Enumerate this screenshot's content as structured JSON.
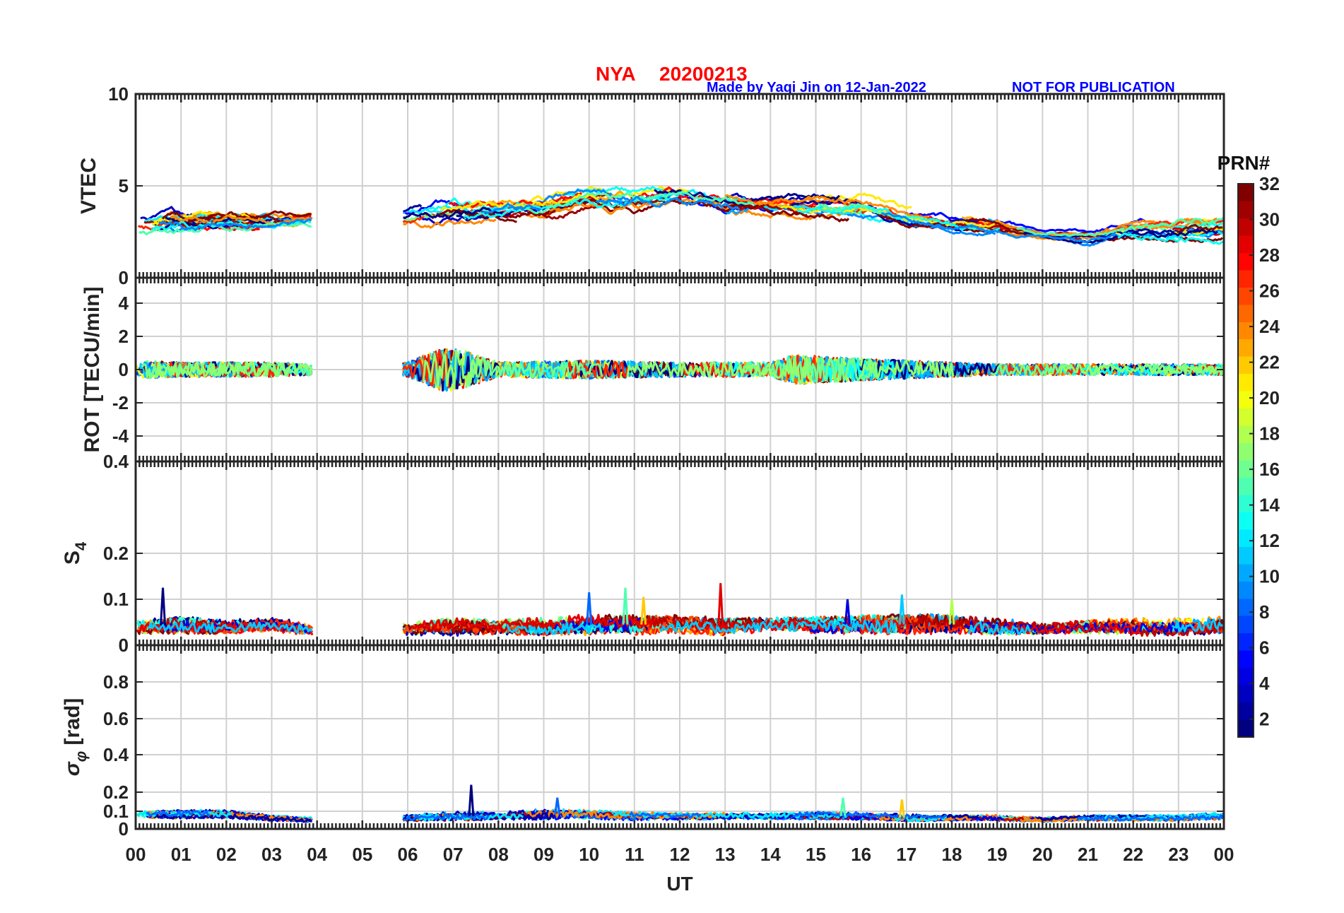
{
  "title": {
    "station": "NYA",
    "date": "20200213",
    "credit": "Made by Yaqi Jin on 12-Jan-2022",
    "notice": "NOT FOR PUBLICATION"
  },
  "chart_data": {
    "type": "line",
    "x_label": "UT",
    "x_ticks": [
      "00",
      "01",
      "02",
      "03",
      "04",
      "05",
      "06",
      "07",
      "08",
      "09",
      "10",
      "11",
      "12",
      "13",
      "14",
      "15",
      "16",
      "17",
      "18",
      "19",
      "20",
      "21",
      "22",
      "23",
      "00"
    ],
    "xlim": [
      0,
      24
    ],
    "data_gap_hours": [
      3.9,
      5.9
    ],
    "colorbar": {
      "title": "PRN#",
      "range": [
        1,
        32
      ],
      "ticks": [
        "2",
        "4",
        "6",
        "8",
        "10",
        "12",
        "14",
        "16",
        "18",
        "20",
        "22",
        "24",
        "26",
        "28",
        "30",
        "32"
      ],
      "colormap": "jet"
    },
    "panels": [
      {
        "id": "vtec",
        "ylabel": "VTEC",
        "ylim": [
          0,
          10
        ],
        "yticks": [
          "0",
          "5",
          "10"
        ],
        "envelope": {
          "hours": [
            0,
            1,
            2,
            3,
            3.9,
            6,
            7,
            8,
            9,
            10,
            11,
            12,
            13,
            14,
            15,
            16,
            17,
            18,
            19,
            20,
            21,
            22,
            23,
            24
          ],
          "mean": [
            2.9,
            3.0,
            3.1,
            3.1,
            3.2,
            3.3,
            3.6,
            3.7,
            3.9,
            4.4,
            4.3,
            4.5,
            4.2,
            4.0,
            4.0,
            3.9,
            3.3,
            3.0,
            2.8,
            2.3,
            2.2,
            2.6,
            2.6,
            2.7
          ],
          "spread": [
            0.9,
            0.9,
            0.8,
            0.7,
            0.6,
            0.8,
            1.0,
            0.8,
            0.9,
            0.9,
            1.0,
            1.0,
            0.9,
            0.7,
            0.8,
            0.9,
            0.7,
            0.6,
            0.6,
            0.3,
            0.5,
            0.7,
            0.8,
            0.8
          ]
        }
      },
      {
        "id": "rot",
        "ylabel": "ROT [TECU/min]",
        "ylim": [
          -5,
          5
        ],
        "yticks": [
          "-4",
          "-2",
          "0",
          "2",
          "4"
        ],
        "envelope": {
          "hours": [
            0,
            1,
            2,
            3,
            3.9,
            6,
            6.8,
            7.3,
            8,
            10,
            12,
            14,
            14.5,
            16,
            17,
            19,
            21,
            24
          ],
          "mean": [
            0,
            0,
            0,
            0,
            0,
            0,
            0,
            0,
            0,
            0,
            0,
            0,
            0,
            0,
            0,
            0,
            0,
            0
          ],
          "spread": [
            0.5,
            0.4,
            0.4,
            0.4,
            0.3,
            0.4,
            1.2,
            1.0,
            0.4,
            0.5,
            0.4,
            0.4,
            0.8,
            0.6,
            0.5,
            0.3,
            0.3,
            0.3
          ]
        }
      },
      {
        "id": "s4",
        "ylabel": "S",
        "ylabel_sub": "4",
        "ylim": [
          0,
          0.4
        ],
        "yticks": [
          "0",
          "0.1",
          "0.2",
          "0.4"
        ],
        "envelope": {
          "hours": [
            0,
            1,
            2,
            3,
            3.9,
            6,
            7,
            8,
            9,
            10,
            11,
            12,
            13,
            14,
            15,
            16,
            17,
            18,
            19,
            20,
            21,
            22,
            23,
            24
          ],
          "mean": [
            0.04,
            0.045,
            0.04,
            0.045,
            0.035,
            0.035,
            0.04,
            0.04,
            0.04,
            0.045,
            0.045,
            0.045,
            0.04,
            0.045,
            0.045,
            0.045,
            0.045,
            0.045,
            0.04,
            0.035,
            0.04,
            0.04,
            0.04,
            0.045
          ],
          "spread": [
            0.025,
            0.03,
            0.025,
            0.025,
            0.02,
            0.02,
            0.03,
            0.025,
            0.03,
            0.035,
            0.035,
            0.03,
            0.03,
            0.025,
            0.03,
            0.035,
            0.035,
            0.035,
            0.03,
            0.02,
            0.025,
            0.03,
            0.03,
            0.03
          ]
        },
        "spikes": [
          [
            0.6,
            0.125
          ],
          [
            10,
            0.115
          ],
          [
            10.8,
            0.125
          ],
          [
            11.2,
            0.105
          ],
          [
            12.9,
            0.135
          ],
          [
            15.7,
            0.1
          ],
          [
            16.9,
            0.11
          ],
          [
            18.0,
            0.1
          ]
        ]
      },
      {
        "id": "sigma_phi",
        "ylabel": "σ",
        "ylabel_sub": "φ",
        "ylabel_rest": " [rad]",
        "ylim": [
          0,
          1
        ],
        "yticks": [
          "0",
          "0.1",
          "0.2",
          "0.4",
          "0.6",
          "0.8"
        ],
        "envelope": {
          "hours": [
            0,
            1,
            2,
            3,
            3.9,
            6,
            7,
            8,
            9,
            10,
            11,
            12,
            13,
            14,
            15,
            16,
            17,
            18,
            19,
            20,
            21,
            22,
            23,
            24
          ],
          "mean": [
            0.08,
            0.08,
            0.08,
            0.06,
            0.05,
            0.06,
            0.07,
            0.07,
            0.08,
            0.08,
            0.07,
            0.07,
            0.07,
            0.07,
            0.07,
            0.07,
            0.06,
            0.06,
            0.06,
            0.05,
            0.06,
            0.06,
            0.06,
            0.07
          ],
          "spread": [
            0.035,
            0.035,
            0.035,
            0.025,
            0.02,
            0.025,
            0.04,
            0.035,
            0.045,
            0.04,
            0.035,
            0.03,
            0.03,
            0.03,
            0.035,
            0.035,
            0.03,
            0.025,
            0.025,
            0.02,
            0.025,
            0.025,
            0.025,
            0.03
          ]
        },
        "spikes": [
          [
            7.4,
            0.24
          ],
          [
            9.3,
            0.17
          ],
          [
            15.6,
            0.17
          ],
          [
            16.9,
            0.16
          ]
        ]
      }
    ]
  }
}
